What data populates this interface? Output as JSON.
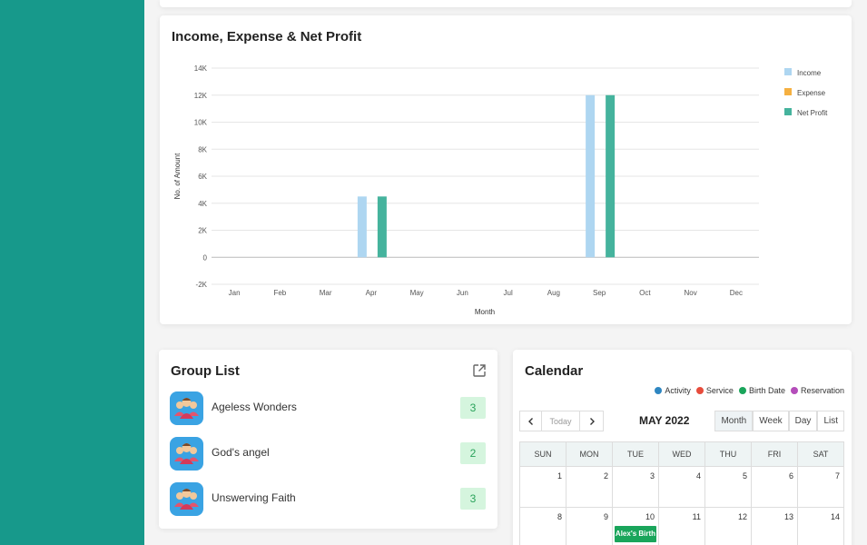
{
  "income_chart": {
    "title": "Income, Expense & Net Profit",
    "colors": {
      "income": "#aed6f1",
      "expense": "#f5b041",
      "net_profit": "#45b39d"
    }
  },
  "chart_data": {
    "type": "bar",
    "title": "Income, Expense & Net Profit",
    "xlabel": "Month",
    "ylabel": "No. of Amount",
    "categories": [
      "Jan",
      "Feb",
      "Mar",
      "Apr",
      "May",
      "Jun",
      "Jul",
      "Aug",
      "Sep",
      "Oct",
      "Nov",
      "Dec"
    ],
    "y_ticks": [
      "14K",
      "12K",
      "10K",
      "8K",
      "6K",
      "4K",
      "2K",
      "0",
      "-2K"
    ],
    "ylim": [
      -2000,
      14000
    ],
    "series": [
      {
        "name": "Income",
        "color": "#aed6f1",
        "values": [
          0,
          0,
          0,
          4500,
          0,
          0,
          0,
          0,
          12000,
          0,
          0,
          0
        ]
      },
      {
        "name": "Expense",
        "color": "#f5b041",
        "values": [
          0,
          0,
          0,
          0,
          0,
          0,
          0,
          0,
          0,
          0,
          0,
          0
        ]
      },
      {
        "name": "Net Profit",
        "color": "#45b39d",
        "values": [
          0,
          0,
          0,
          4500,
          0,
          0,
          0,
          0,
          12000,
          0,
          0,
          0
        ]
      }
    ],
    "legend": "top-right",
    "grid": true
  },
  "group_list": {
    "title": "Group List",
    "items": [
      {
        "name": "Ageless Wonders",
        "count": "3"
      },
      {
        "name": "God's angel",
        "count": "2"
      },
      {
        "name": "Unswerving Faith",
        "count": "3"
      }
    ]
  },
  "calendar": {
    "title": "Calendar",
    "legend": [
      {
        "label": "Activity",
        "color": "#2e86c1"
      },
      {
        "label": "Service",
        "color": "#e74c3c"
      },
      {
        "label": "Birth Date",
        "color": "#1aa55b"
      },
      {
        "label": "Reservation",
        "color": "#b44dba"
      }
    ],
    "today_label": "Today",
    "month_label": "MAY 2022",
    "views": [
      "Month",
      "Week",
      "Day",
      "List"
    ],
    "weekdays": [
      "SUN",
      "MON",
      "TUE",
      "WED",
      "THU",
      "FRI",
      "SAT"
    ],
    "weeks": [
      [
        "1",
        "2",
        "3",
        "4",
        "5",
        "6",
        "7"
      ],
      [
        "8",
        "9",
        "10",
        "11",
        "12",
        "13",
        "14"
      ]
    ],
    "event": {
      "label": "Alex's Birth"
    }
  }
}
